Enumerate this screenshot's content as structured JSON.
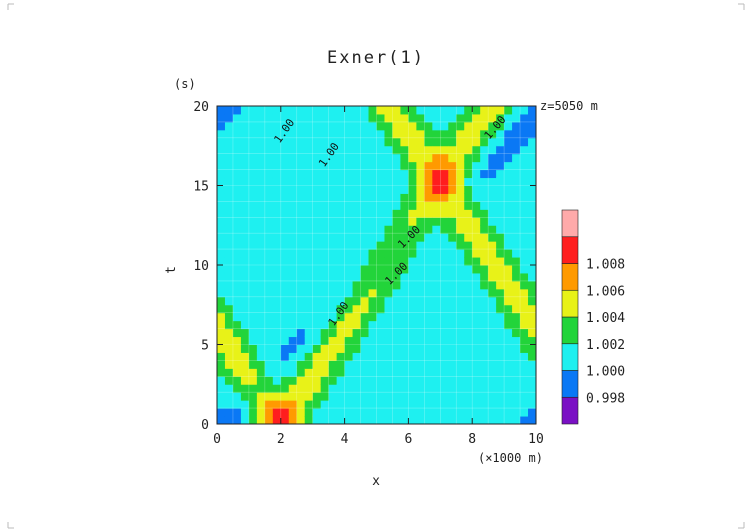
{
  "figure": {
    "title": "Exner(1)",
    "annotation": "z=5050 m"
  },
  "chart_data": {
    "type": "heatmap",
    "title": "Exner(1)",
    "annotation": "z=5050 m",
    "xlabel": "x",
    "x_unit": "(×1000 m)",
    "ylabel": "t",
    "y_unit": "(s)",
    "xlim": [
      0,
      10
    ],
    "ylim": [
      0,
      20
    ],
    "x_ticks": [
      0,
      2,
      4,
      6,
      8,
      10
    ],
    "y_ticks": [
      0,
      5,
      10,
      15,
      20
    ],
    "grid": true,
    "colorbar": {
      "levels": [
        0.998,
        1.0,
        1.002,
        1.004,
        1.006,
        1.008
      ],
      "level_labels": [
        "0.998",
        "1.000",
        "1.002",
        "1.004",
        "1.006",
        "1.008"
      ],
      "colors": [
        "#7a10c4",
        "#0a78f5",
        "#1ef0f0",
        "#22d43a",
        "#e8f218",
        "#ff9a00",
        "#ff1e1e",
        "#ffaaaa"
      ]
    },
    "background_color": "#1a82f2",
    "contour_labels": [
      "1.00",
      "1.00",
      "1.00",
      "1.00",
      "1.00",
      "1.00"
    ],
    "pulse": {
      "amplitude": 0.009,
      "width_km": 0.55,
      "initial_center_km": 2.0,
      "speed_km_per_s": 0.33,
      "rear_speed_km_per_s": 0.5
    },
    "peak_values": [
      {
        "x": 2.0,
        "t": 0.2,
        "value": 1.009
      },
      {
        "x": 7.0,
        "t": 15.0,
        "value": 1.009
      }
    ]
  }
}
